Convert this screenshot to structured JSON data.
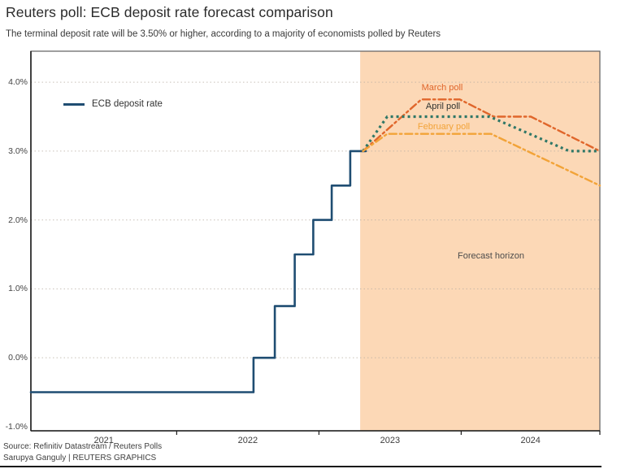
{
  "header": {
    "title": "Reuters poll: ECB deposit rate forecast comparison",
    "subtitle": "The terminal deposit rate will be 3.50% or higher, according to a majority of economists polled by Reuters"
  },
  "footer": {
    "source": "Source: Refinitiv Datastream / Reuters Polls",
    "credit": "Sarupya Ganguly | REUTERS GRAPHICS"
  },
  "colors": {
    "ecb_line": "#1f4d72",
    "march": "#e0662b",
    "april": "#2f7767",
    "april_label": "#2e322f",
    "february": "#f2a338",
    "forecast_bg": "#fcd8b6",
    "grid": "#b7aca1",
    "axis": "#1a1a1a",
    "frame": "#5f5f5f"
  },
  "chart_data": {
    "type": "line",
    "title": "Reuters poll: ECB deposit rate forecast comparison",
    "forecast_label": "Forecast horizon",
    "x_axis": {
      "range": [
        2020.975,
        2024.975
      ],
      "boundary_ticks": [
        2022,
        2023,
        2024,
        2024.975
      ],
      "year_labels": [
        "2021",
        "2022",
        "2023",
        "2024"
      ]
    },
    "y_axis": {
      "range": [
        -1.06,
        4.45
      ],
      "tick_values": [
        4,
        3,
        2,
        1,
        0,
        -1
      ],
      "tick_labels": [
        "4.0%",
        "3.0%",
        "2.0%",
        "1.0%",
        "0.0%",
        "-1.0%"
      ],
      "grid_values": [
        4,
        3,
        2,
        1,
        0
      ]
    },
    "forecast_start_x": 2023.29,
    "series": [
      {
        "name": "ECB deposit rate",
        "key": "ecb",
        "color_key": "ecb_line",
        "dash": "solid",
        "width": 2.6,
        "points": [
          [
            2020.975,
            -0.5
          ],
          [
            2022.54,
            -0.5
          ],
          [
            2022.54,
            0
          ],
          [
            2022.69,
            0
          ],
          [
            2022.69,
            0.75
          ],
          [
            2022.83,
            0.75
          ],
          [
            2022.83,
            1.5
          ],
          [
            2022.96,
            1.5
          ],
          [
            2022.96,
            2
          ],
          [
            2023.09,
            2
          ],
          [
            2023.09,
            2.5
          ],
          [
            2023.22,
            2.5
          ],
          [
            2023.22,
            3
          ],
          [
            2023.33,
            3
          ]
        ]
      },
      {
        "name": "March poll",
        "key": "march",
        "color_key": "march",
        "dash": "dashdot",
        "width": 2.4,
        "points": [
          [
            2023.31,
            3
          ],
          [
            2023.72,
            3.75
          ],
          [
            2023.99,
            3.75
          ],
          [
            2024.23,
            3.5
          ],
          [
            2024.49,
            3.5
          ],
          [
            2024.975,
            3
          ]
        ]
      },
      {
        "name": "April poll",
        "key": "april",
        "color_key": "april",
        "dash": "dot",
        "width": 3.2,
        "points": [
          [
            2023.31,
            3
          ],
          [
            2023.48,
            3.5
          ],
          [
            2024.2,
            3.5
          ],
          [
            2024.76,
            3
          ],
          [
            2024.975,
            3
          ]
        ]
      },
      {
        "name": "February poll",
        "key": "february",
        "color_key": "february",
        "dash": "dashdot",
        "width": 2.4,
        "points": [
          [
            2023.31,
            3
          ],
          [
            2023.48,
            3.25
          ],
          [
            2024.21,
            3.25
          ],
          [
            2024.975,
            2.5
          ]
        ]
      }
    ]
  }
}
